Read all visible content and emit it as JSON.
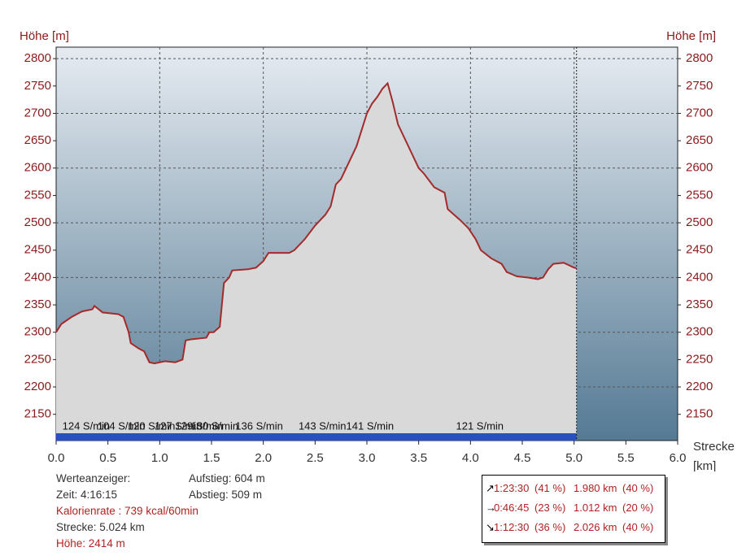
{
  "chart_data": {
    "type": "area",
    "y_label_left": "Höhe [m]",
    "y_label_right": "Höhe [m]",
    "x_label": "Strecke",
    "x_unit": "[km]",
    "xlim": [
      0,
      6
    ],
    "xticks": [
      {
        "value": 0,
        "label": "0.0"
      },
      0.5,
      {
        "value": 1,
        "label": "1.0"
      },
      1.5,
      {
        "value": 2,
        "label": "2.0"
      },
      2.5,
      {
        "value": 3,
        "label": "3.0"
      },
      3.5,
      {
        "value": 4,
        "label": "4.0"
      },
      4.5,
      {
        "value": 5,
        "label": "5.0"
      },
      5.5,
      {
        "value": 6,
        "label": "6.0"
      }
    ],
    "ylim": [
      2102,
      2821
    ],
    "yticks": [
      2150,
      2200,
      2250,
      2300,
      2350,
      2400,
      2450,
      2500,
      2550,
      2600,
      2650,
      2700,
      2750,
      2800
    ],
    "xgrid": [
      1,
      2,
      3,
      4,
      5
    ],
    "ygrid": [
      2200,
      2300,
      2400,
      2500,
      2600,
      2700,
      2800
    ],
    "series": [
      {
        "color": "#a52a2a",
        "fill": "#d9d9d9",
        "x": [
          0,
          0.05,
          0.15,
          0.25,
          0.35,
          0.37,
          0.45,
          0.6,
          0.65,
          0.7,
          0.72,
          0.8,
          0.85,
          0.9,
          0.95,
          1.05,
          1.15,
          1.22,
          1.25,
          1.3,
          1.45,
          1.48,
          1.52,
          1.58,
          1.62,
          1.67,
          1.7,
          1.85,
          1.93,
          2,
          2.05,
          2.15,
          2.25,
          2.3,
          2.4,
          2.5,
          2.6,
          2.65,
          2.7,
          2.75,
          2.8,
          2.85,
          2.9,
          2.95,
          3,
          3.05,
          3.1,
          3.15,
          3.2,
          3.25,
          3.3,
          3.4,
          3.5,
          3.55,
          3.65,
          3.75,
          3.78,
          3.9,
          3.98,
          4.05,
          4.1,
          4.2,
          4.3,
          4.35,
          4.45,
          4.55,
          4.65,
          4.7,
          4.75,
          4.8,
          4.9,
          5,
          5.024
        ],
        "values": [
          2300,
          2315,
          2328,
          2338,
          2342,
          2348,
          2336,
          2333,
          2328,
          2300,
          2280,
          2270,
          2265,
          2245,
          2243,
          2247,
          2245,
          2250,
          2285,
          2287,
          2290,
          2300,
          2300,
          2310,
          2390,
          2400,
          2413,
          2415,
          2418,
          2430,
          2445,
          2445,
          2445,
          2450,
          2470,
          2495,
          2515,
          2530,
          2570,
          2580,
          2600,
          2620,
          2640,
          2670,
          2700,
          2718,
          2730,
          2745,
          2755,
          2720,
          2680,
          2640,
          2600,
          2590,
          2565,
          2555,
          2525,
          2505,
          2490,
          2470,
          2450,
          2435,
          2425,
          2410,
          2402,
          2400,
          2397,
          2400,
          2415,
          2425,
          2427,
          2418,
          2417
        ]
      }
    ],
    "track_bar": {
      "color": "#2a4fc0",
      "x": [
        0,
        5.024
      ]
    },
    "cadence": {
      "x": [
        0.06,
        0.4,
        0.69,
        0.95,
        1.15,
        1.3,
        1.73,
        2.34,
        2.8,
        3.86
      ],
      "labels": [
        "124 S/min",
        "104 S/min",
        "120 S/min",
        "127 S/min",
        "129 S/min",
        "130 S/min",
        "136 S/min",
        "143 S/min",
        "141 S/min",
        "121 S/min"
      ]
    }
  },
  "info": {
    "left": [
      "Werteanzeiger:",
      "Zeit: 4:16:15",
      "Kalorienrate : 739 kcal/60min",
      "Strecke: 5.024 km",
      "Höhe: 2414 m"
    ],
    "right": [
      "Aufstieg: 604 m",
      "Abstieg: 509 m"
    ],
    "table": [
      [
        "↗",
        "1:23:30",
        "(41 %)",
        "1.980 km",
        "(40 %)"
      ],
      [
        "→",
        "0:46:45",
        "(23 %)",
        "1.012 km",
        "(20 %)"
      ],
      [
        "↘",
        "1:12:30",
        "(36 %)",
        "2.026 km",
        "(40 %)"
      ]
    ]
  }
}
